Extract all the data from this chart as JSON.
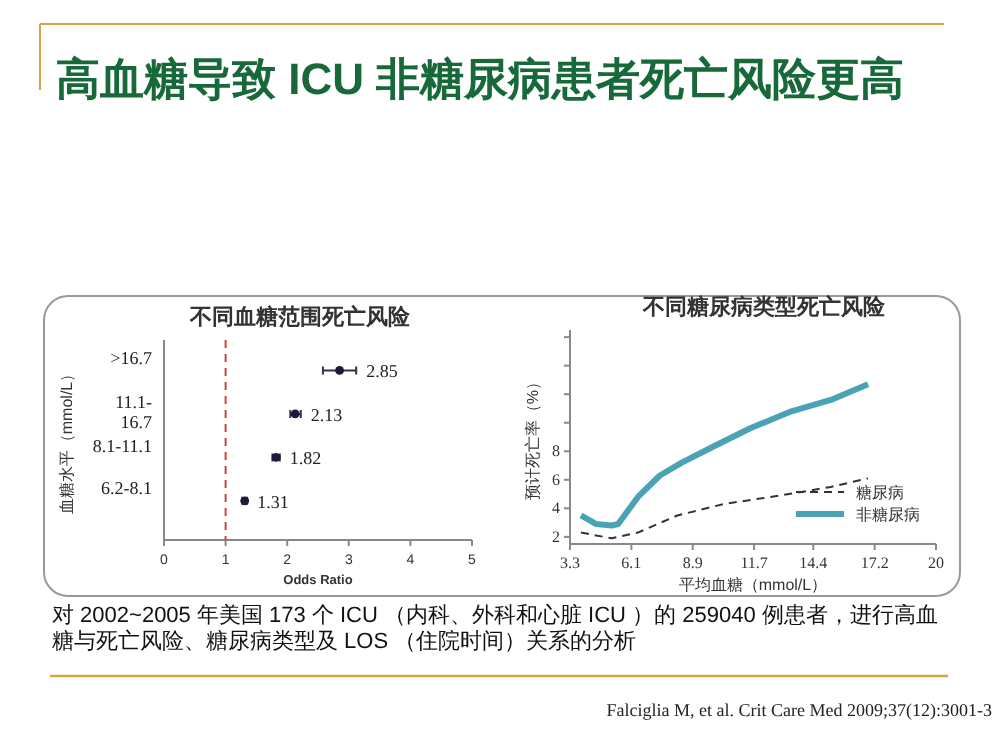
{
  "chart_data": [
    {
      "type": "other",
      "title": "高血糖导致 ICU 非糖尿病患者死亡风险更高",
      "annotations": [
        "对 2002~2005 年美国 173 个 ICU （内科、外科和心脏 ICU ）的 259040 例患者，进行高血糖与死亡风险、糖尿病类型及 LOS （住院时间）关系的分析",
        "Falciglia M, et al. Crit Care Med 2009;37(12):3001-3"
      ]
    },
    {
      "type": "scatter",
      "orientation": "horizontal",
      "title": "不同血糖范围死亡风险",
      "xlabel": "Odds Ratio",
      "ylabel": "血糖水平（mmol/L）",
      "categories": [
        ">16.7",
        "11.1-16.7",
        "8.1-11.1",
        "6.2-8.1"
      ],
      "series": [
        {
          "color": "#1a1a3a",
          "values": [
            2.85,
            2.13,
            1.82,
            1.31
          ],
          "errors": [
            [
              2.58,
              3.12
            ],
            [
              2.05,
              2.22
            ],
            [
              1.76,
              1.88
            ],
            [
              1.27,
              1.35
            ]
          ]
        }
      ],
      "xlim": [
        0,
        5
      ],
      "xticks": [
        0,
        1,
        2,
        3,
        4,
        5
      ],
      "ref_lines": [
        {
          "axis": "x",
          "value": 1,
          "color": "#d04040",
          "line_style": "dashed"
        }
      ],
      "data_labels": true,
      "marker": "circle"
    },
    {
      "type": "line",
      "title": "不同糖尿病类型死亡风险",
      "xlabel": "平均血糖（mmol/L）",
      "ylabel": "预计死亡率（%）",
      "series": [
        {
          "name": "糖尿病",
          "color": "#333333",
          "line_style": "dashed",
          "x": [
            3.8,
            5.2,
            6.4,
            8.2,
            10.3,
            12.9,
            15.2,
            16.9
          ],
          "values": [
            2.3,
            1.9,
            2.3,
            3.5,
            4.3,
            4.9,
            5.5,
            6.1
          ]
        },
        {
          "name": "非糖尿病",
          "color": "#4aa3b5",
          "line_style": "solid",
          "x": [
            3.8,
            4.5,
            5.2,
            5.5,
            6.4,
            7.4,
            8.4,
            9.8,
            11.5,
            13.4,
            15.2,
            16.9
          ],
          "values": [
            3.5,
            2.9,
            2.8,
            2.9,
            4.8,
            6.3,
            7.2,
            8.3,
            9.6,
            10.8,
            11.6,
            12.7
          ]
        }
      ],
      "xlim": [
        3.3,
        20.0
      ],
      "xticks": [
        3.3,
        6.1,
        8.9,
        11.7,
        14.4,
        17.2,
        20.0
      ],
      "ylim": [
        1.5,
        16.5
      ],
      "yticks": [
        2,
        4,
        6,
        8,
        {
          "value": 10,
          "label": null
        },
        {
          "value": 12,
          "label": null
        },
        {
          "value": 14,
          "label": null
        },
        {
          "value": 16,
          "label": null
        }
      ],
      "legend": "bottom right"
    }
  ]
}
